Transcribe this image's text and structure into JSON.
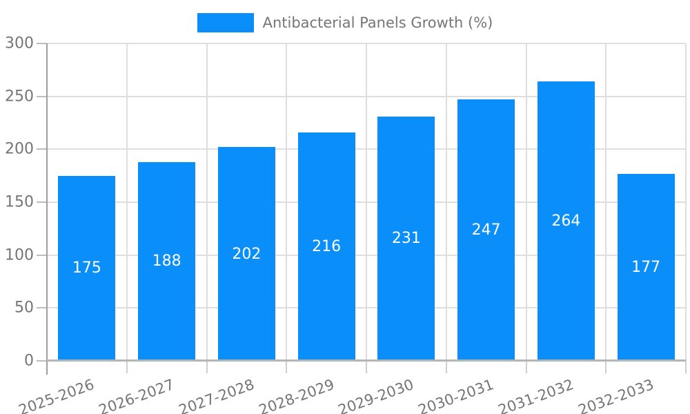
{
  "chart_data": {
    "type": "bar",
    "title": "Antibacterial Panels Growth (%)",
    "categories": [
      "2025-2026",
      "2026-2027",
      "2027-2028",
      "2028-2029",
      "2029-2030",
      "2030-2031",
      "2031-2032",
      "2032-2033"
    ],
    "series": [
      {
        "name": "Antibacterial Panels Growth (%)",
        "values": [
          175,
          188,
          202,
          216,
          231,
          247,
          264,
          177
        ]
      }
    ],
    "xlabel": "",
    "ylabel": "",
    "ylim": [
      0,
      300
    ],
    "yticks": [
      0,
      50,
      100,
      150,
      200,
      250,
      300
    ],
    "grid": true,
    "legend_position": "top",
    "value_label_position": "inside-center",
    "x_label_rotation_deg": -20
  },
  "colors": {
    "bar": "#0a8ef9",
    "grid": "#dedede",
    "axis": "#9e9e9e",
    "baseline": "#b5b5b5",
    "y_tick": "#bdbdbd",
    "x_tick": "#cfcfcf",
    "text": "#757575",
    "value_label": "#ffffff",
    "background": "#ffffff"
  }
}
